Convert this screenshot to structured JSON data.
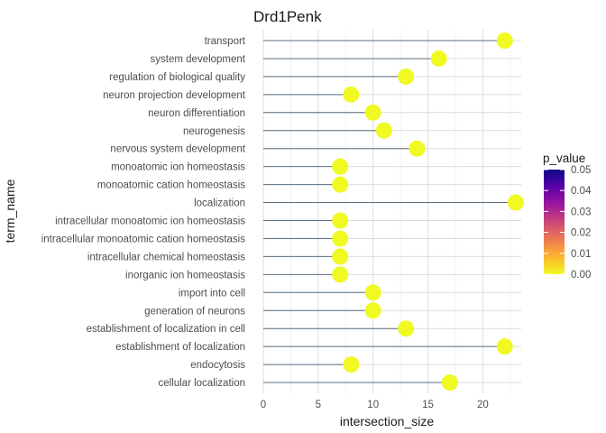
{
  "chart_data": {
    "type": "lollipop",
    "title": "Drd1Penk",
    "xlabel": "intersection_size",
    "ylabel": "term_name",
    "xlim": [
      0,
      23.5
    ],
    "x_ticks": [
      0,
      5,
      10,
      15,
      20
    ],
    "grid": true,
    "categories": [
      "transport",
      "system development",
      "regulation of biological quality",
      "neuron projection development",
      "neuron differentiation",
      "neurogenesis",
      "nervous system development",
      "monoatomic ion homeostasis",
      "monoatomic cation homeostasis",
      "localization",
      "intracellular monoatomic ion homeostasis",
      "intracellular monoatomic cation homeostasis",
      "intracellular chemical homeostasis",
      "inorganic ion homeostasis",
      "import into cell",
      "generation of neurons",
      "establishment of localization in cell",
      "establishment of localization",
      "endocytosis",
      "cellular localization"
    ],
    "values": [
      22,
      16,
      13,
      8,
      10,
      11,
      14,
      7,
      7,
      23,
      7,
      7,
      7,
      7,
      10,
      10,
      13,
      22,
      8,
      17
    ],
    "point_color": "#f0f921",
    "stem_color": "#5a6e80",
    "legend": {
      "title": "p_value",
      "placement": "right",
      "ticks": [
        "0.05",
        "0.04",
        "0.03",
        "0.02",
        "0.01",
        "0.00"
      ],
      "range": [
        0.0,
        0.05
      ],
      "colormap": "plasma",
      "colors": [
        "#0d0887",
        "#5c01a6",
        "#9c179e",
        "#cc4778",
        "#ed7953",
        "#fdb42f",
        "#f0f921"
      ]
    }
  }
}
